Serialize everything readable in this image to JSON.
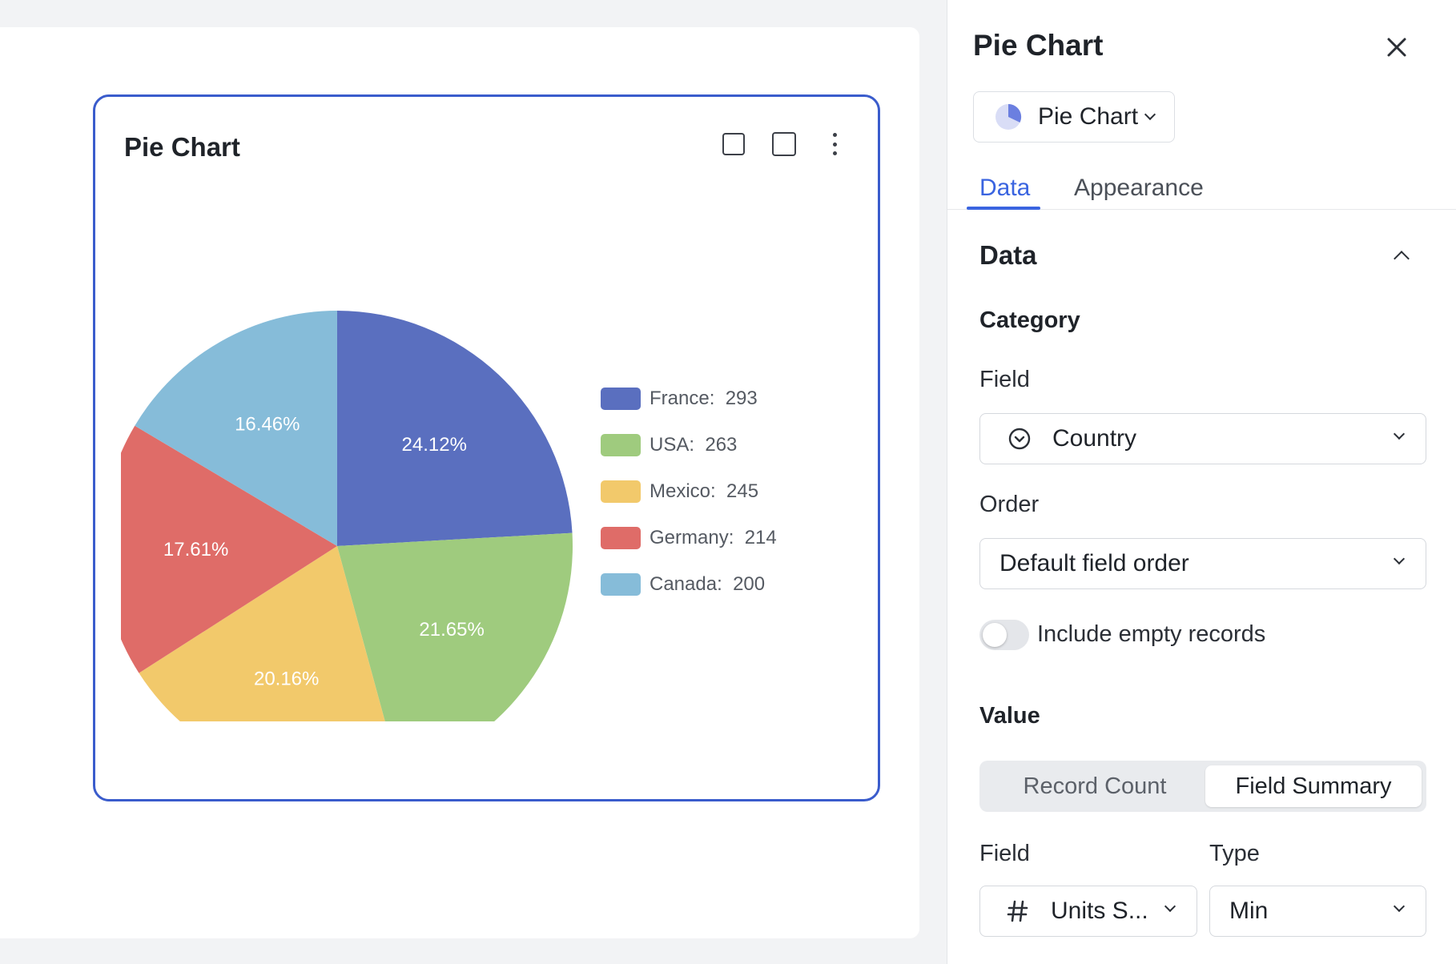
{
  "widget": {
    "title": "Pie Chart",
    "actions": [
      "expand-icon",
      "fullscreen-icon",
      "more-icon"
    ]
  },
  "chart_data": {
    "type": "pie",
    "categories": [
      "France",
      "USA",
      "Mexico",
      "Germany",
      "Canada"
    ],
    "values": [
      293,
      263,
      245,
      214,
      200
    ],
    "percent_labels": [
      "24.12%",
      "21.65%",
      "20.16%",
      "17.61%",
      "16.46%"
    ],
    "colors": [
      "#5a6fbf",
      "#9fcb7e",
      "#f2c96b",
      "#df6c68",
      "#86bcd9"
    ],
    "legend_labels": [
      "France:  293",
      "USA:  263",
      "Mexico:  245",
      "Germany:  214",
      "Canada:  200"
    ],
    "legend_position": "right"
  },
  "panel": {
    "title": "Pie Chart",
    "chart_type": "Pie Chart",
    "tabs": [
      {
        "label": "Data",
        "active": true
      },
      {
        "label": "Appearance",
        "active": false
      }
    ],
    "section": "Data",
    "category": {
      "title": "Category",
      "field_label": "Field",
      "field_value": "Country",
      "order_label": "Order",
      "order_value": "Default field order",
      "include_empty_label": "Include empty records",
      "include_empty": false
    },
    "value": {
      "title": "Value",
      "modes": [
        "Record Count",
        "Field Summary"
      ],
      "active_mode": "Field Summary",
      "field_label": "Field",
      "field_value": "Units S...",
      "type_label": "Type",
      "type_value": "Min"
    }
  },
  "colors": {
    "accent": "#3a64e0",
    "widget_border": "#3a5ccc"
  }
}
